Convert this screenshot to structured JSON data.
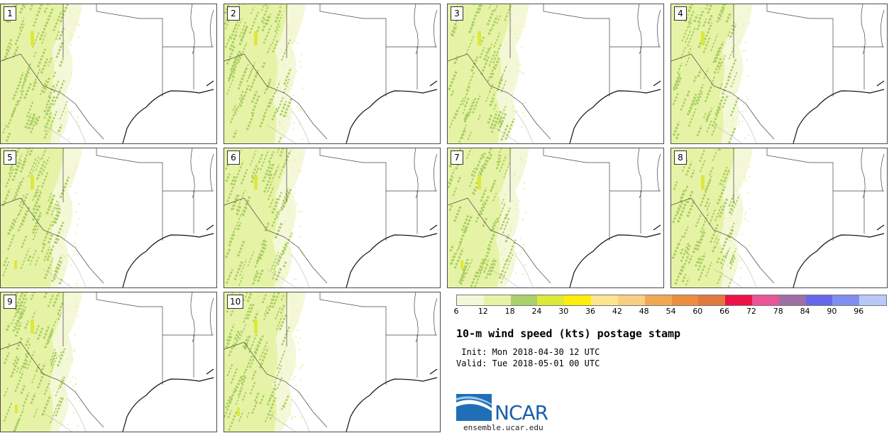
{
  "panels": [
    "1",
    "2",
    "3",
    "4",
    "5",
    "6",
    "7",
    "8",
    "9",
    "10"
  ],
  "colorbar": {
    "colors": [
      "#f4f8d8",
      "#e6f3a6",
      "#abd06c",
      "#dde83a",
      "#ffed0a",
      "#fde690",
      "#f8cf82",
      "#f0a855",
      "#eb8e3e",
      "#e07a3f",
      "#ee1147",
      "#e85599",
      "#9e6fa6",
      "#6768ec",
      "#7f8ff0",
      "#b9c9f7"
    ],
    "labels": [
      "6",
      "12",
      "18",
      "24",
      "30",
      "36",
      "42",
      "48",
      "54",
      "60",
      "66",
      "72",
      "78",
      "84",
      "90",
      "96"
    ]
  },
  "title": "10-m wind speed (kts) postage stamp",
  "init": " Init: Mon 2018-04-30 12 UTC",
  "valid": "Valid: Tue 2018-05-01 00 UTC",
  "logo": {
    "text": "NCAR",
    "icon": "ncar-logo-icon"
  },
  "url": "ensemble.ucar.edu"
}
